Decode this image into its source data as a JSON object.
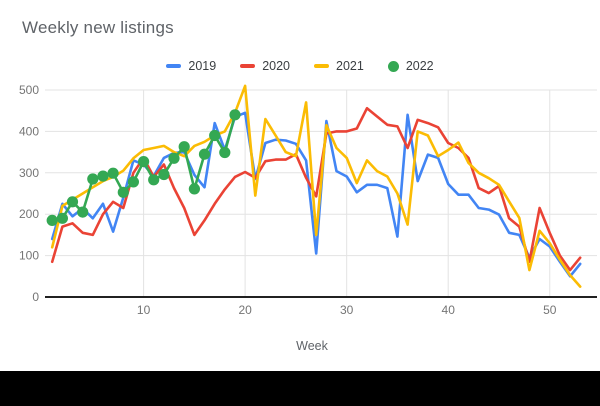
{
  "chart_data": {
    "type": "line",
    "title": "Weekly new listings",
    "xlabel": "Week",
    "ylabel": "",
    "xlim": [
      1,
      53
    ],
    "ylim": [
      0,
      500
    ],
    "x_ticks": [
      10,
      20,
      30,
      40,
      50
    ],
    "y_ticks": [
      0,
      100,
      200,
      300,
      400,
      500
    ],
    "grid": true,
    "legend_position": "top-center",
    "colors": {
      "grid": "#e3e3e3",
      "axis_line": "#212121",
      "tick_label": "#757575",
      "axis_title": "#5f6368",
      "title": "#5f6368",
      "legend_text": "#3c4043"
    },
    "x_start_week": 1,
    "series": [
      {
        "name": "2019",
        "color": "#4285f4",
        "marker": "none",
        "values": [
          140,
          225,
          195,
          214,
          190,
          225,
          158,
          240,
          330,
          320,
          292,
          336,
          348,
          350,
          295,
          265,
          420,
          355,
          435,
          445,
          285,
          372,
          380,
          378,
          370,
          330,
          105,
          425,
          304,
          291,
          253,
          271,
          271,
          263,
          146,
          440,
          280,
          344,
          336,
          273,
          247,
          247,
          215,
          211,
          199,
          155,
          150,
          95,
          140,
          122,
          85,
          50,
          80
        ]
      },
      {
        "name": "2020",
        "color": "#ea4335",
        "marker": "none",
        "values": [
          85,
          170,
          178,
          155,
          150,
          200,
          230,
          215,
          300,
          336,
          290,
          320,
          263,
          215,
          150,
          185,
          225,
          260,
          290,
          302,
          288,
          328,
          332,
          332,
          345,
          288,
          243,
          395,
          400,
          400,
          407,
          456,
          436,
          416,
          412,
          360,
          428,
          420,
          410,
          372,
          360,
          336,
          263,
          251,
          268,
          190,
          170,
          85,
          215,
          155,
          100,
          65,
          95
        ]
      },
      {
        "name": "2021",
        "color": "#fbbc04",
        "marker": "none",
        "values": [
          120,
          220,
          235,
          250,
          265,
          280,
          290,
          305,
          335,
          355,
          360,
          365,
          350,
          340,
          365,
          375,
          390,
          400,
          445,
          510,
          245,
          430,
          390,
          350,
          340,
          470,
          150,
          415,
          360,
          336,
          275,
          330,
          304,
          291,
          250,
          175,
          400,
          390,
          340,
          355,
          373,
          324,
          300,
          287,
          271,
          231,
          191,
          65,
          160,
          130,
          90,
          53,
          25
        ]
      },
      {
        "name": "2022",
        "color": "#34a853",
        "marker": "circle",
        "values": [
          185,
          190,
          230,
          205,
          285,
          292,
          299,
          253,
          278,
          327,
          283,
          296,
          335,
          363,
          261,
          345,
          390,
          349,
          440
        ]
      }
    ]
  }
}
